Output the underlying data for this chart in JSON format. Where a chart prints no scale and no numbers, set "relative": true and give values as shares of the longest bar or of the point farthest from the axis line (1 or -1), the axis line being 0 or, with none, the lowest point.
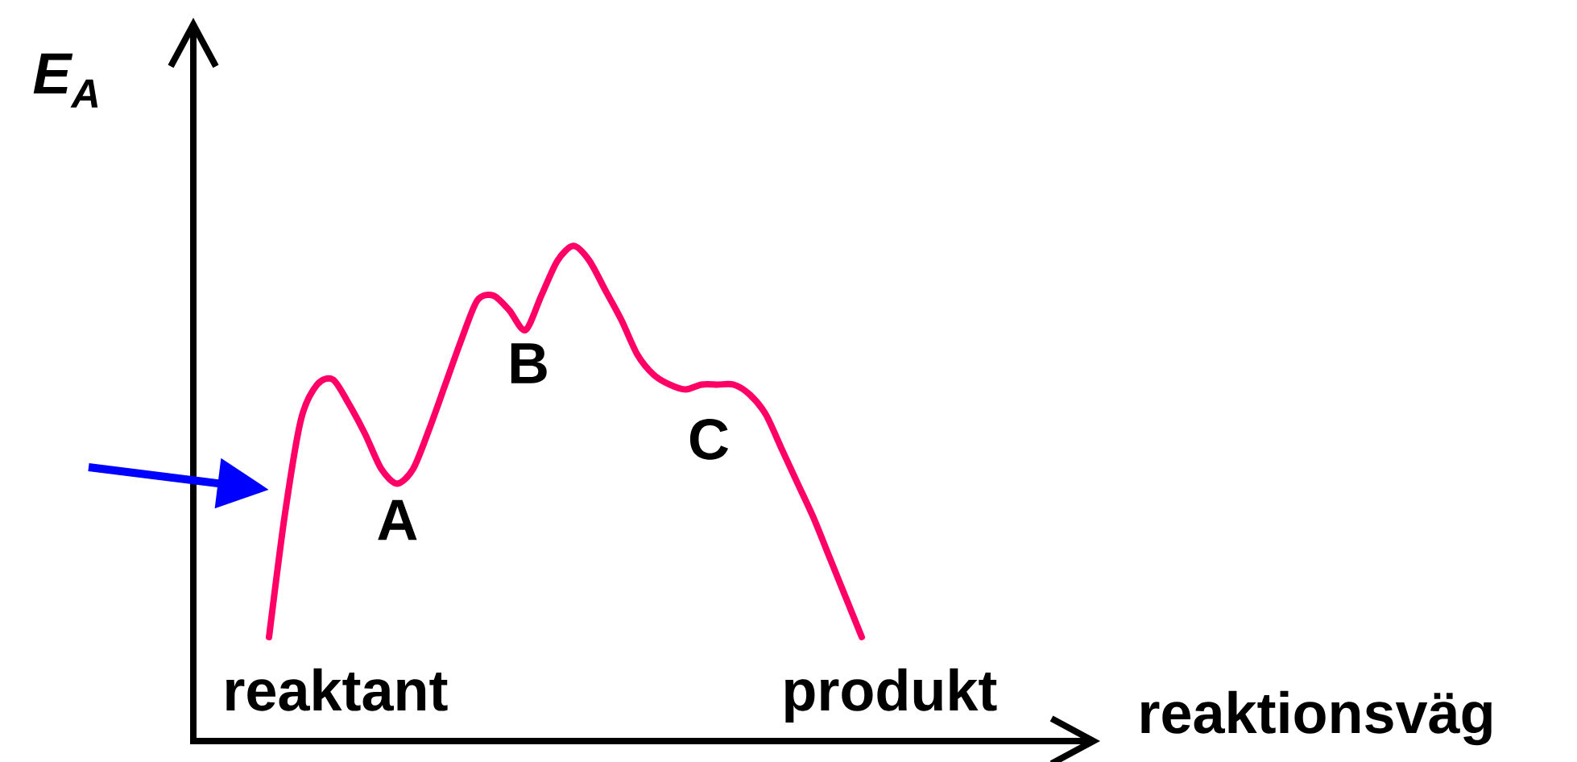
{
  "chart_data": {
    "type": "line",
    "relative": true,
    "xlabel": "reaktionsväg",
    "ylabel": "E$_{A}$",
    "color": "#ff0066",
    "categories": [
      null,
      null,
      null,
      null,
      null,
      null,
      null,
      null,
      null,
      null,
      null,
      null,
      null,
      null,
      null,
      null,
      null,
      null,
      null,
      null,
      null,
      null,
      null,
      null,
      null,
      null,
      null,
      null,
      null,
      null,
      null,
      null,
      null,
      null,
      null,
      null,
      null,
      null
    ],
    "values": [
      0.21,
      0.46,
      0.65,
      0.72,
      0.73,
      0.68,
      0.62,
      0.55,
      0.52,
      0.55,
      0.63,
      0.72,
      0.81,
      0.89,
      0.9,
      0.87,
      0.83,
      0.9,
      0.97,
      1.0,
      0.97,
      0.91,
      0.85,
      0.78,
      0.74,
      0.72,
      0.71,
      0.72,
      0.72,
      0.72,
      0.7,
      0.66,
      0.59,
      0.52,
      0.45,
      0.37,
      0.29,
      0.21
    ],
    "annotations": [
      "reaktant",
      {
        "text": "A",
        "y": 0.52
      },
      {
        "text": "B",
        "y": 0.83
      },
      {
        "text": "C",
        "y": 0.72
      },
      "produkt"
    ]
  }
}
